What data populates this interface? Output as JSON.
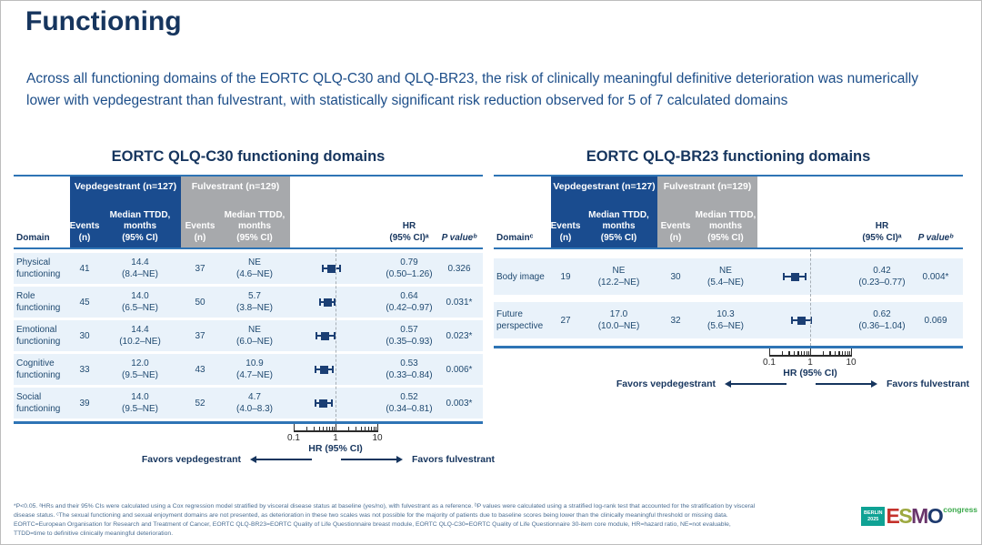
{
  "slide": {
    "title": "Functioning",
    "intro": "Across all functioning domains of the EORTC QLQ-C30 and QLQ-BR23, the risk of clinically meaningful definitive deterioration was numerically lower with vepdegestrant than fulvestrant, with statistically significant risk reduction observed for 5 of 7 calculated domains"
  },
  "panels": [
    {
      "header": {
        "domain": "Domain",
        "group1": "Vepdegestrant (n=127)",
        "group2": "Fulvestrant (n=129)",
        "events": "Events\n(n)",
        "ttdd": "Median TTDD,\nmonths\n(95% CI)",
        "hr": "HR\n(95% CI)ᵃ",
        "pvalue": "P valueᵇ"
      }
    },
    {
      "header": {
        "domain": "Domainᶜ",
        "group1": "Vepdegestrant (n=127)",
        "group2": "Fulvestrant (n=129)",
        "events": "Events\n(n)",
        "ttdd": "Median TTDD,\nmonths\n(95% CI)",
        "hr": "HR\n(95% CI)ᵃ",
        "pvalue": "P valueᵇ"
      }
    }
  ],
  "chart_data": [
    {
      "type": "forest",
      "title": "EORTC QLQ-C30 functioning domains",
      "x_scale": "log",
      "x_ticks": [
        0.1,
        1,
        10
      ],
      "xlabel": "HR (95% CI)",
      "reference_line": 1,
      "favors_left": "Favors vepdegestrant",
      "favors_right": "Favors fulvestrant",
      "rows": [
        {
          "domain": "Physical functioning",
          "vep_events": 41,
          "vep_median_ttdd": "14.4 (8.4–NE)",
          "ful_events": 37,
          "ful_median_ttdd": "NE (4.6–NE)",
          "hr": 0.79,
          "ci_low": 0.5,
          "ci_high": 1.26,
          "p_value": "0.326"
        },
        {
          "domain": "Role functioning",
          "vep_events": 45,
          "vep_median_ttdd": "14.0 (6.5–NE)",
          "ful_events": 50,
          "ful_median_ttdd": "5.7 (3.8–NE)",
          "hr": 0.64,
          "ci_low": 0.42,
          "ci_high": 0.97,
          "p_value": "0.031*"
        },
        {
          "domain": "Emotional functioning",
          "vep_events": 30,
          "vep_median_ttdd": "14.4 (10.2–NE)",
          "ful_events": 37,
          "ful_median_ttdd": "NE (6.0–NE)",
          "hr": 0.57,
          "ci_low": 0.35,
          "ci_high": 0.93,
          "p_value": "0.023*"
        },
        {
          "domain": "Cognitive functioning",
          "vep_events": 33,
          "vep_median_ttdd": "12.0 (9.5–NE)",
          "ful_events": 43,
          "ful_median_ttdd": "10.9 (4.7–NE)",
          "hr": 0.53,
          "ci_low": 0.33,
          "ci_high": 0.84,
          "p_value": "0.006*"
        },
        {
          "domain": "Social functioning",
          "vep_events": 39,
          "vep_median_ttdd": "14.0 (9.5–NE)",
          "ful_events": 52,
          "ful_median_ttdd": "4.7 (4.0–8.3)",
          "hr": 0.52,
          "ci_low": 0.34,
          "ci_high": 0.81,
          "p_value": "0.003*"
        }
      ]
    },
    {
      "type": "forest",
      "title": "EORTC QLQ-BR23 functioning domains",
      "x_scale": "log",
      "x_ticks": [
        0.1,
        1,
        10
      ],
      "xlabel": "HR (95% CI)",
      "reference_line": 1,
      "favors_left": "Favors vepdegestrant",
      "favors_right": "Favors fulvestrant",
      "rows": [
        {
          "domain": "Body image",
          "vep_events": 19,
          "vep_median_ttdd": "NE (12.2–NE)",
          "ful_events": 30,
          "ful_median_ttdd": "NE (5.4–NE)",
          "hr": 0.42,
          "ci_low": 0.23,
          "ci_high": 0.77,
          "p_value": "0.004*"
        },
        {
          "domain": "Future perspective",
          "vep_events": 27,
          "vep_median_ttdd": "17.0 (10.0–NE)",
          "ful_events": 32,
          "ful_median_ttdd": "10.3 (5.6–NE)",
          "hr": 0.62,
          "ci_low": 0.36,
          "ci_high": 1.04,
          "p_value": "0.069"
        }
      ]
    }
  ],
  "footnotes": [
    "*P<0.05. ᵃHRs and their 95% CIs were calculated using a Cox regression model stratified by visceral disease status at baseline (yes/no), with fulvestrant as a reference. ᵇP values were calculated using a stratified log-rank test that accounted for the stratification by visceral",
    "disease status. ᶜThe sexual functioning and sexual enjoyment domains are not presented, as deterioration in these two scales was not possible for the majority of patients due to baseline scores being lower than the clinically meaningful threshold or missing data.",
    "EORTC=European Organisation for Research and Treatment of Cancer, EORTC QLQ-BR23=EORTC Quality of Life Questionnaire breast module, EORTC QLQ-C30=EORTC Quality of Life Questionnaire 30-item core module, HR=hazard ratio, NE=not evaluable,",
    "TTDD=time to definitive clinically meaningful deterioration."
  ],
  "logo": {
    "location_line1": "BERLIN",
    "location_line2": "2025",
    "esmo": [
      "E",
      "S",
      "M",
      "O"
    ],
    "congress": "congress"
  },
  "colors": {
    "title_navy": "#16355E",
    "body_text_blue": "#1F4970",
    "table_line_blue": "#2E74B5",
    "header_block_blue": "#1A4C8F",
    "header_block_gray": "#A7A9AC",
    "row_band_blue": "#E9F2FA",
    "marker_navy": "#1B3F74",
    "footnote_blue": "#4A6D92",
    "esmo_teal": "#0FA294",
    "esmo_red_e": "#C4322B",
    "esmo_green_s": "#9DA940",
    "esmo_purple_m": "#69356B",
    "esmo_navy_o": "#1E3A6E",
    "congress_green": "#3BA94B"
  }
}
